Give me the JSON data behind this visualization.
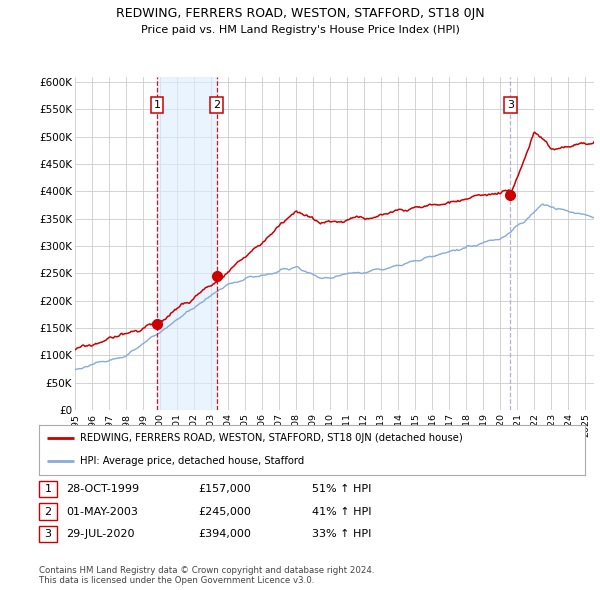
{
  "title": "REDWING, FERRERS ROAD, WESTON, STAFFORD, ST18 0JN",
  "subtitle": "Price paid vs. HM Land Registry's House Price Index (HPI)",
  "ylabel_ticks": [
    "£0",
    "£50K",
    "£100K",
    "£150K",
    "£200K",
    "£250K",
    "£300K",
    "£350K",
    "£400K",
    "£450K",
    "£500K",
    "£550K",
    "£600K"
  ],
  "ytick_values": [
    0,
    50000,
    100000,
    150000,
    200000,
    250000,
    300000,
    350000,
    400000,
    450000,
    500000,
    550000,
    600000
  ],
  "ylim": [
    0,
    610000
  ],
  "xlim_start": 1995.0,
  "xlim_end": 2025.5,
  "transactions": [
    {
      "label": "1",
      "date": 1999.83,
      "price": 157000,
      "vline_style": "dashed",
      "vline_color": "#cc0000"
    },
    {
      "label": "2",
      "date": 2003.33,
      "price": 245000,
      "vline_style": "dashed",
      "vline_color": "#cc0000"
    },
    {
      "label": "3",
      "date": 2020.58,
      "price": 394000,
      "vline_style": "dashed",
      "vline_color": "#8888bb"
    }
  ],
  "transaction_table": [
    {
      "num": "1",
      "date": "28-OCT-1999",
      "price": "£157,000",
      "pct": "51% ↑ HPI"
    },
    {
      "num": "2",
      "date": "01-MAY-2003",
      "price": "£245,000",
      "pct": "41% ↑ HPI"
    },
    {
      "num": "3",
      "date": "29-JUL-2020",
      "price": "£394,000",
      "pct": "33% ↑ HPI"
    }
  ],
  "legend_entries": [
    "REDWING, FERRERS ROAD, WESTON, STAFFORD, ST18 0JN (detached house)",
    "HPI: Average price, detached house, Stafford"
  ],
  "footer": "Contains HM Land Registry data © Crown copyright and database right 2024.\nThis data is licensed under the Open Government Licence v3.0.",
  "red_color": "#cc0000",
  "blue_color": "#88aadd",
  "shade_color": "#ddeeff",
  "vline_color_red": "#cc0000",
  "vline_color_blue": "#aaaacc",
  "bg_color": "#ffffff",
  "grid_color": "#cccccc"
}
